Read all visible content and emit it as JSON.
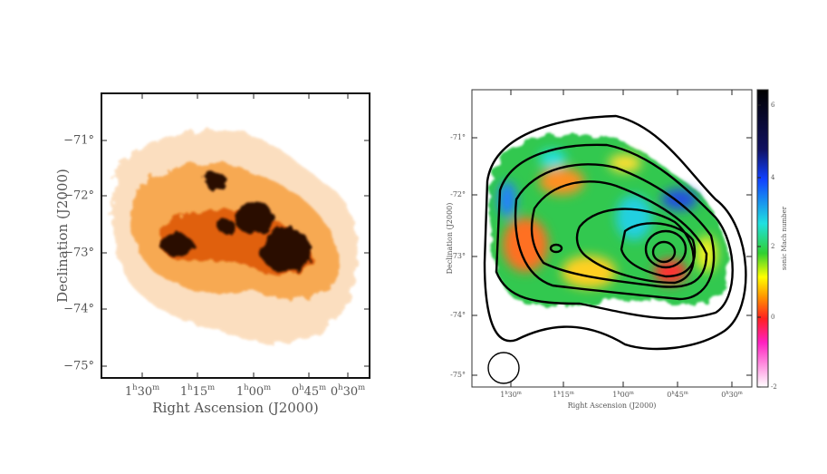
{
  "left_panel": {
    "y_label": "Declination (J2000)",
    "x_label": "Right Ascension (J2000)",
    "y_ticks": [
      "−71°",
      "−72°",
      "−73°",
      "−74°",
      "−75°"
    ],
    "x_ticks": [
      [
        "1",
        "h",
        "30",
        "m"
      ],
      [
        "1",
        "h",
        "15",
        "m"
      ],
      [
        "1",
        "h",
        "00",
        "m"
      ],
      [
        "0",
        "h",
        "45",
        "m"
      ],
      [
        "0",
        "h",
        "30",
        "m"
      ]
    ]
  },
  "right_panel": {
    "y_label": "Declination (J2000)",
    "x_label": "Right Ascension (J2000)",
    "y_ticks": [
      "-71°",
      "-72°",
      "-73°",
      "-74°",
      "-75°"
    ],
    "x_ticks": [
      [
        "1",
        "h",
        "30",
        "m"
      ],
      [
        "1",
        "h",
        "15",
        "m"
      ],
      [
        "1",
        "h",
        "00",
        "m"
      ],
      [
        "0",
        "h",
        "45",
        "m"
      ],
      [
        "0",
        "h",
        "30",
        "m"
      ]
    ],
    "colorbar": {
      "label": "sonic Mach number",
      "ticks": [
        "6",
        "4",
        "2",
        "0",
        "-2"
      ]
    }
  }
}
